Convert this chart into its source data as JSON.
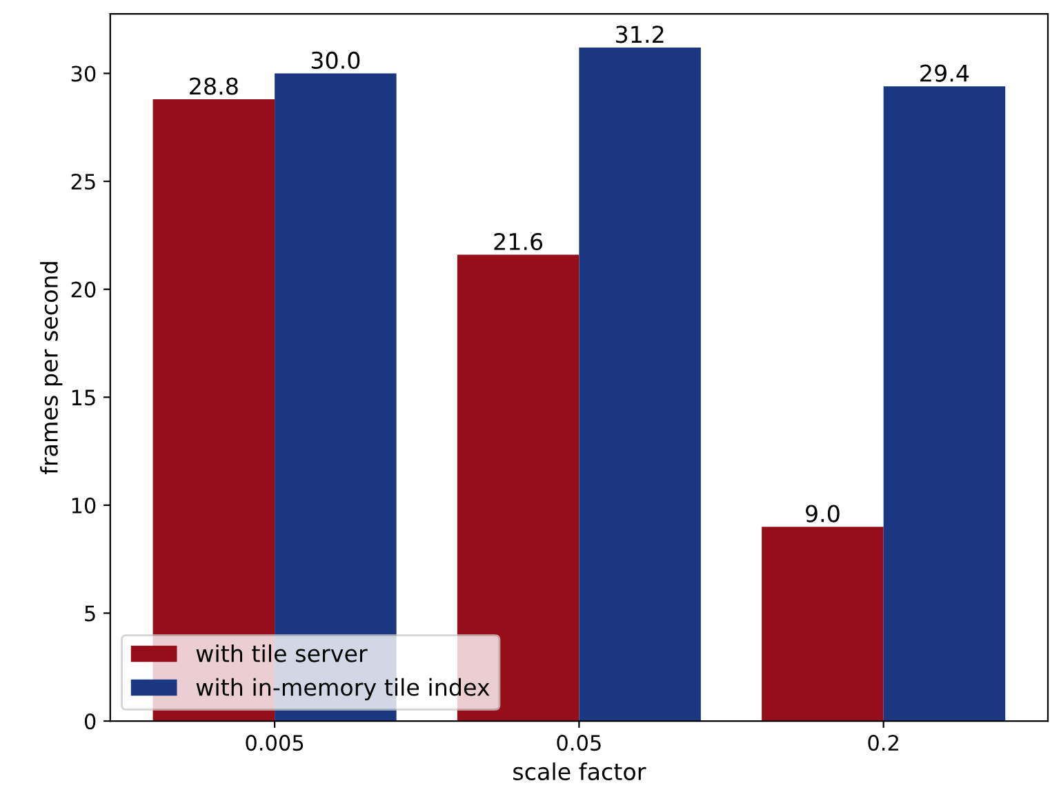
{
  "chart_data": {
    "type": "bar",
    "xlabel": "scale factor",
    "ylabel": "frames per second",
    "categories": [
      "0.005",
      "0.05",
      "0.2"
    ],
    "series": [
      {
        "name": "with tile server",
        "color": "#970e1b",
        "values": [
          28.8,
          21.6,
          9.0
        ],
        "value_labels": [
          "28.8",
          "21.6",
          "9.0"
        ]
      },
      {
        "name": "with in-memory tile index",
        "color": "#1b3781",
        "values": [
          30.0,
          31.2,
          29.4
        ],
        "value_labels": [
          "30.0",
          "31.2",
          "29.4"
        ]
      }
    ],
    "ylim": [
      0,
      32.76
    ],
    "yticks": [
      0,
      5,
      10,
      15,
      20,
      25,
      30
    ],
    "legend": "bottom left",
    "grid": false
  }
}
